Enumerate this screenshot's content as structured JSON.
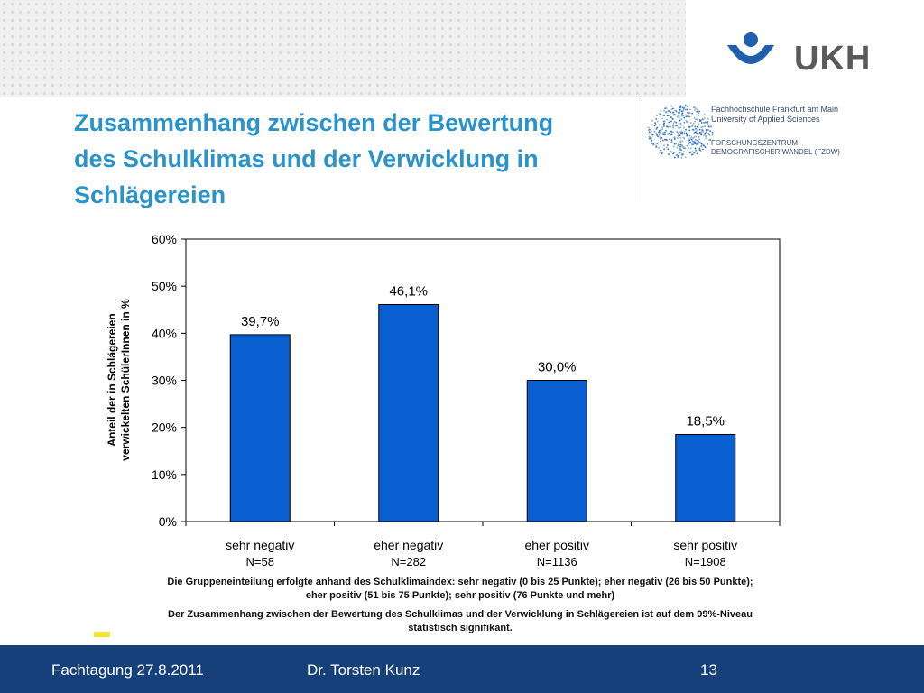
{
  "slide": {
    "title_lines": [
      "Zusammenhang zwischen der Bewertung",
      "des Schulklimas und der Verwicklung in",
      "Schlägereien"
    ],
    "logo_text": "UKH",
    "institution": {
      "line1": "Fachhochschule Frankfurt am Main",
      "line2": "University of Applied Sciences",
      "line3": "FORSCHUNGSZENTRUM",
      "line4": "DEMOGRAFISCHER WANDEL (FZDW)"
    },
    "caption1_line1": "Die Gruppeneinteilung erfolgte anhand des Schulklimaindex: sehr negativ (0 bis 25 Punkte); eher negativ (26 bis 50 Punkte);",
    "caption1_line2": "eher positiv (51 bis 75 Punkte); sehr positiv (76 Punkte und mehr)",
    "caption2_line1": "Der Zusammenhang zwischen der Bewertung des Schulklimas und der Verwicklung in Schlägereien ist auf dem 99%-Niveau",
    "caption2_line2": "statistisch signifikant.",
    "footer": {
      "event": "Fachtagung 27.8.2011",
      "author": "Dr. Torsten Kunz",
      "page": "13"
    }
  },
  "colors": {
    "title": "#2a93c9",
    "bar": "#0a5fd0",
    "footer": "#16407a",
    "logo_blue": "#1f5fae"
  },
  "chart_data": {
    "type": "bar",
    "categories": [
      "sehr negativ",
      "eher negativ",
      "eher positiv",
      "sehr positiv"
    ],
    "sublabels": [
      "N=58",
      "N=282",
      "N=1136",
      "N=1908"
    ],
    "values": [
      39.7,
      46.1,
      30.0,
      18.5
    ],
    "value_labels": [
      "39,7%",
      "46,1%",
      "30,0%",
      "18,5%"
    ],
    "ylabel_line1": "Anteil der in Schlägereien",
    "ylabel_line2": "verwickelten SchülerInnen in %",
    "yticks": [
      0,
      10,
      20,
      30,
      40,
      50,
      60
    ],
    "ytick_labels": [
      "0%",
      "10%",
      "20%",
      "30%",
      "40%",
      "50%",
      "60%"
    ],
    "ylim": [
      0,
      60
    ],
    "grid": false,
    "legend": "none"
  }
}
